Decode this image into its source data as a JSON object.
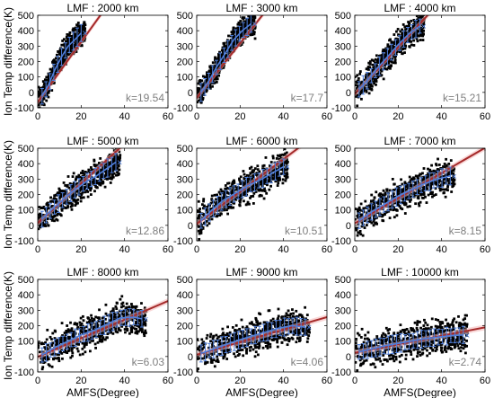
{
  "chart_data": [
    {
      "type": "scatter",
      "title": "LMF : 2000 km",
      "annotation": "k=19.54",
      "slope": 19.54,
      "ylabel": "Ion Temp difference(K)",
      "xlabel": "",
      "xlim": [
        0,
        60
      ],
      "ylim": [
        -100,
        500
      ],
      "xticks": [
        0,
        20,
        40,
        60
      ],
      "yticks": [
        -100,
        0,
        100,
        200,
        300,
        400,
        500
      ],
      "series": [
        {
          "values": [
            [
              2,
              -25
            ],
            [
              5,
              50
            ],
            [
              8,
              150
            ],
            [
              11,
              230
            ],
            [
              14,
              300
            ],
            [
              17,
              340
            ],
            [
              20,
              385
            ]
          ]
        }
      ]
    },
    {
      "type": "scatter",
      "title": "LMF : 3000 km",
      "annotation": "k=17.7",
      "slope": 17.7,
      "ylabel": "",
      "xlabel": "",
      "xlim": [
        0,
        60
      ],
      "ylim": [
        -100,
        500
      ],
      "xticks": [
        0,
        20,
        40,
        60
      ],
      "yticks": [
        -100,
        0,
        100,
        200,
        300,
        400,
        500
      ],
      "series": [
        {
          "values": [
            [
              2,
              0
            ],
            [
              5,
              60
            ],
            [
              9,
              160
            ],
            [
              13,
              250
            ],
            [
              17,
              340
            ],
            [
              21,
              400
            ],
            [
              25,
              445
            ]
          ]
        }
      ]
    },
    {
      "type": "scatter",
      "title": "LMF : 4000 km",
      "annotation": "k=15.21",
      "slope": 15.21,
      "ylabel": "",
      "xlabel": "",
      "xlim": [
        0,
        60
      ],
      "ylim": [
        -100,
        500
      ],
      "xticks": [
        0,
        20,
        40,
        60
      ],
      "yticks": [
        -100,
        0,
        100,
        200,
        300,
        400,
        500
      ],
      "series": [
        {
          "values": [
            [
              2,
              20
            ],
            [
              6,
              80
            ],
            [
              10,
              150
            ],
            [
              15,
              230
            ],
            [
              20,
              310
            ],
            [
              25,
              380
            ],
            [
              30,
              430
            ]
          ]
        }
      ]
    },
    {
      "type": "scatter",
      "title": "LMF : 5000 km",
      "annotation": "k=12.86",
      "slope": 12.86,
      "ylabel": "Ion Temp difference(K)",
      "xlabel": "",
      "xlim": [
        0,
        60
      ],
      "ylim": [
        -100,
        500
      ],
      "xticks": [
        0,
        20,
        40,
        60
      ],
      "yticks": [
        -100,
        0,
        100,
        200,
        300,
        400,
        500
      ],
      "series": [
        {
          "values": [
            [
              2,
              40
            ],
            [
              7,
              110
            ],
            [
              12,
              170
            ],
            [
              17,
              230
            ],
            [
              22,
              280
            ],
            [
              27,
              320
            ],
            [
              32,
              370
            ],
            [
              36,
              410
            ]
          ]
        }
      ]
    },
    {
      "type": "scatter",
      "title": "LMF : 6000 km",
      "annotation": "k=10.51",
      "slope": 10.51,
      "ylabel": "",
      "xlabel": "",
      "xlim": [
        0,
        60
      ],
      "ylim": [
        -100,
        500
      ],
      "xticks": [
        0,
        20,
        40,
        60
      ],
      "yticks": [
        -100,
        0,
        100,
        200,
        300,
        400,
        500
      ],
      "series": [
        {
          "values": [
            [
              2,
              30
            ],
            [
              7,
              100
            ],
            [
              12,
              160
            ],
            [
              18,
              210
            ],
            [
              24,
              260
            ],
            [
              30,
              300
            ],
            [
              35,
              340
            ],
            [
              40,
              380
            ]
          ]
        }
      ]
    },
    {
      "type": "scatter",
      "title": "LMF : 7000 km",
      "annotation": "k=8.15",
      "slope": 8.15,
      "ylabel": "",
      "xlabel": "",
      "xlim": [
        0,
        60
      ],
      "ylim": [
        -100,
        500
      ],
      "xticks": [
        0,
        20,
        40,
        60
      ],
      "yticks": [
        -100,
        0,
        100,
        200,
        300,
        400,
        500
      ],
      "series": [
        {
          "values": [
            [
              2,
              30
            ],
            [
              8,
              90
            ],
            [
              14,
              140
            ],
            [
              20,
              190
            ],
            [
              26,
              230
            ],
            [
              32,
              270
            ],
            [
              38,
              300
            ],
            [
              44,
              320
            ]
          ]
        }
      ]
    },
    {
      "type": "scatter",
      "title": "LMF : 8000 km",
      "annotation": "k=6.03",
      "slope": 6.03,
      "ylabel": "Ion Temp difference(K)",
      "xlabel": "AMFS(Degree)",
      "xlim": [
        0,
        60
      ],
      "ylim": [
        -100,
        500
      ],
      "xticks": [
        0,
        20,
        40,
        60
      ],
      "yticks": [
        -100,
        0,
        100,
        200,
        300,
        400,
        500
      ],
      "series": [
        {
          "values": [
            [
              2,
              10
            ],
            [
              8,
              60
            ],
            [
              14,
              100
            ],
            [
              20,
              140
            ],
            [
              26,
              170
            ],
            [
              32,
              210
            ],
            [
              38,
              250
            ],
            [
              44,
              255
            ],
            [
              48,
              245
            ]
          ]
        }
      ]
    },
    {
      "type": "scatter",
      "title": "LMF : 9000 km",
      "annotation": "k=4.06",
      "slope": 4.06,
      "ylabel": "",
      "xlabel": "AMFS(Degree)",
      "xlim": [
        0,
        60
      ],
      "ylim": [
        -100,
        500
      ],
      "xticks": [
        0,
        20,
        40,
        60
      ],
      "yticks": [
        -100,
        0,
        100,
        200,
        300,
        400,
        500
      ],
      "series": [
        {
          "values": [
            [
              2,
              20
            ],
            [
              8,
              50
            ],
            [
              14,
              80
            ],
            [
              20,
              110
            ],
            [
              26,
              135
            ],
            [
              32,
              160
            ],
            [
              38,
              185
            ],
            [
              44,
              200
            ],
            [
              50,
              190
            ]
          ]
        }
      ]
    },
    {
      "type": "scatter",
      "title": "LMF : 10000 km",
      "annotation": "k=2.74",
      "slope": 2.74,
      "ylabel": "",
      "xlabel": "AMFS(Degree)",
      "xlim": [
        0,
        60
      ],
      "ylim": [
        -100,
        500
      ],
      "xticks": [
        0,
        20,
        40,
        60
      ],
      "yticks": [
        -100,
        0,
        100,
        200,
        300,
        400,
        500
      ],
      "series": [
        {
          "values": [
            [
              2,
              30
            ],
            [
              8,
              50
            ],
            [
              14,
              70
            ],
            [
              20,
              85
            ],
            [
              26,
              100
            ],
            [
              32,
              115
            ],
            [
              38,
              125
            ],
            [
              44,
              135
            ],
            [
              50,
              140
            ]
          ]
        }
      ]
    }
  ],
  "colors": {
    "scatter": "#000000",
    "fit_line": "#a52a2a",
    "band": "#f4b6b6",
    "errorbar": "#4f7fdc",
    "annotation": "#7f7f7f"
  }
}
